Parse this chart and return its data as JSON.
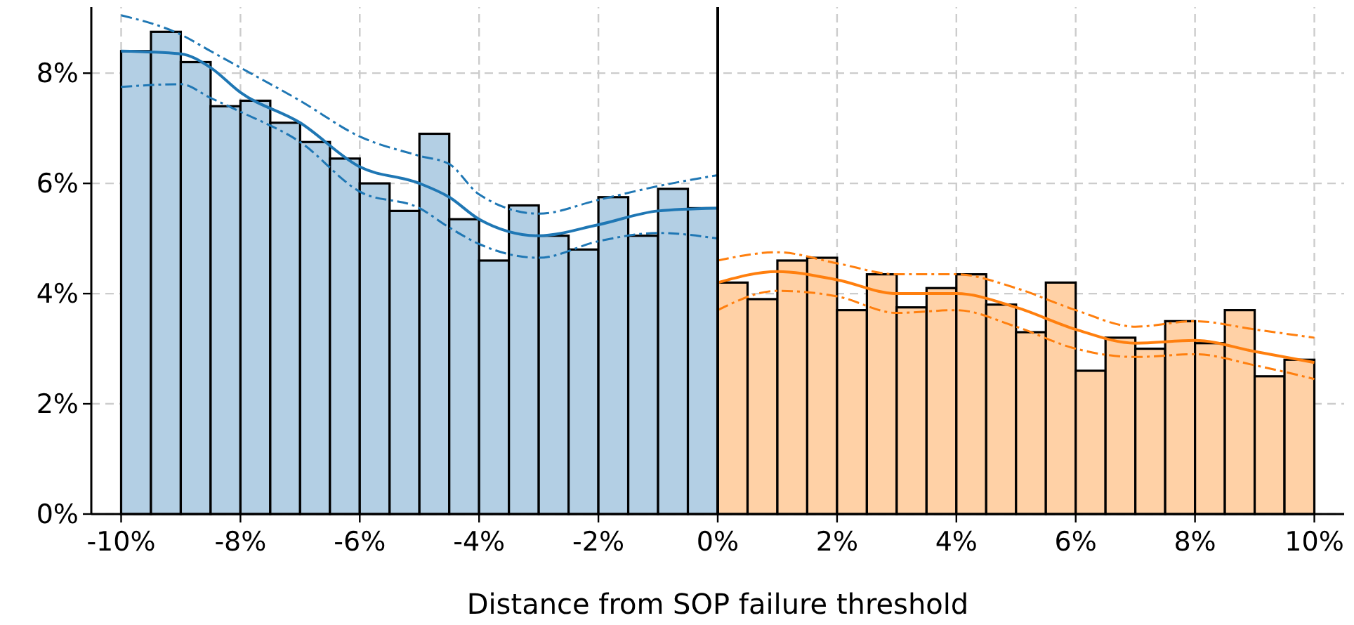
{
  "chart_data": {
    "type": "histogram",
    "xlabel": "Distance from SOP failure threshold",
    "bins": [
      -10,
      -9.5,
      -9,
      -8.5,
      -8,
      -7.5,
      -7,
      -6.5,
      -6,
      -5.5,
      -5,
      -4.5,
      -4,
      -3.5,
      -3,
      -2.5,
      -2,
      -1.5,
      -1,
      -0.5,
      0,
      0.5,
      1,
      1.5,
      2,
      2.5,
      3,
      3.5,
      4,
      4.5,
      5,
      5.5,
      6,
      6.5,
      7,
      7.5,
      8,
      8.5,
      9,
      9.5,
      10
    ],
    "xlim": [
      -10.5,
      10.5
    ],
    "ylim": [
      0,
      9.2
    ],
    "xticks": [
      {
        "value": -10,
        "label": "-10%"
      },
      {
        "value": -8,
        "label": "-8%"
      },
      {
        "value": -6,
        "label": "-6%"
      },
      {
        "value": -4,
        "label": "-4%"
      },
      {
        "value": -2,
        "label": "-2%"
      },
      {
        "value": 0,
        "label": "0%"
      },
      {
        "value": 2,
        "label": "2%"
      },
      {
        "value": 4,
        "label": "4%"
      },
      {
        "value": 6,
        "label": "6%"
      },
      {
        "value": 8,
        "label": "8%"
      },
      {
        "value": 10,
        "label": "10%"
      }
    ],
    "yticks": [
      {
        "value": 0,
        "label": "0%"
      },
      {
        "value": 2,
        "label": "2%"
      },
      {
        "value": 4,
        "label": "4%"
      },
      {
        "value": 6,
        "label": "6%"
      },
      {
        "value": 8,
        "label": "8%"
      }
    ],
    "grid": true,
    "ref_lines": [
      {
        "axis": "x",
        "value": 0,
        "color": "#000000"
      }
    ],
    "series": [
      {
        "color": "#b3cfe4",
        "values": [
          8.4,
          8.75,
          8.2,
          7.4,
          7.5,
          7.1,
          6.75,
          6.45,
          6.0,
          5.5,
          6.9,
          5.35,
          4.6,
          5.6,
          5.05,
          4.8,
          5.75,
          5.05,
          5.9,
          5.55,
          null,
          null,
          null,
          null,
          null,
          null,
          null,
          null,
          null,
          null,
          null,
          null,
          null,
          null,
          null,
          null,
          null,
          null,
          null,
          null
        ]
      },
      {
        "color": "#ffd1a6",
        "values": [
          null,
          null,
          null,
          null,
          null,
          null,
          null,
          null,
          null,
          null,
          null,
          null,
          null,
          null,
          null,
          null,
          null,
          null,
          null,
          null,
          4.2,
          3.9,
          4.6,
          4.65,
          3.7,
          4.35,
          3.75,
          4.1,
          4.35,
          3.8,
          3.3,
          4.2,
          2.6,
          3.2,
          3.0,
          3.5,
          3.1,
          3.7,
          2.5,
          2.8
        ]
      },
      {
        "type": "line",
        "color": "#1f77b4",
        "line_style": "solid",
        "x": [
          -10,
          -9,
          -8.5,
          -8,
          -7,
          -6,
          -5,
          -4.5,
          -4,
          -3,
          -2,
          -1,
          0
        ],
        "values": [
          8.4,
          8.35,
          8.1,
          7.65,
          7.1,
          6.3,
          6.0,
          5.75,
          5.35,
          5.05,
          5.25,
          5.5,
          5.55
        ]
      },
      {
        "type": "line",
        "color": "#1f77b4",
        "line_style": "dashed",
        "x": [
          -10,
          -9,
          -8.5,
          -8,
          -7,
          -6,
          -5,
          -4.5,
          -4,
          -3,
          -2,
          -1,
          0
        ],
        "values": [
          7.75,
          7.8,
          7.55,
          7.3,
          6.75,
          5.85,
          5.55,
          5.2,
          4.9,
          4.65,
          4.95,
          5.1,
          5.0
        ]
      },
      {
        "type": "line",
        "color": "#1f77b4",
        "line_style": "dashed",
        "x": [
          -10,
          -9,
          -8.5,
          -8,
          -7,
          -6,
          -5,
          -4.5,
          -4,
          -3,
          -2,
          -1,
          0
        ],
        "values": [
          9.05,
          8.7,
          8.4,
          8.1,
          7.5,
          6.85,
          6.5,
          6.35,
          5.8,
          5.45,
          5.7,
          5.95,
          6.15
        ]
      },
      {
        "type": "line",
        "color": "#ff7f0e",
        "line_style": "solid",
        "x": [
          0,
          1,
          2,
          3,
          4,
          5,
          6,
          7,
          8,
          9,
          10
        ],
        "values": [
          4.2,
          4.4,
          4.25,
          4.0,
          4.0,
          3.75,
          3.35,
          3.1,
          3.15,
          2.95,
          2.75
        ]
      },
      {
        "type": "line",
        "color": "#ff7f0e",
        "line_style": "dashed",
        "x": [
          0,
          1,
          2,
          3,
          4,
          5,
          6,
          7,
          8,
          9,
          10
        ],
        "values": [
          3.7,
          4.05,
          3.95,
          3.65,
          3.7,
          3.4,
          3.0,
          2.85,
          2.9,
          2.7,
          2.45
        ]
      },
      {
        "type": "line",
        "color": "#ff7f0e",
        "line_style": "dashed",
        "x": [
          0,
          1,
          2,
          3,
          4,
          5,
          6,
          7,
          8,
          9,
          10
        ],
        "values": [
          4.6,
          4.75,
          4.55,
          4.35,
          4.35,
          4.1,
          3.7,
          3.4,
          3.5,
          3.35,
          3.2
        ]
      }
    ]
  }
}
